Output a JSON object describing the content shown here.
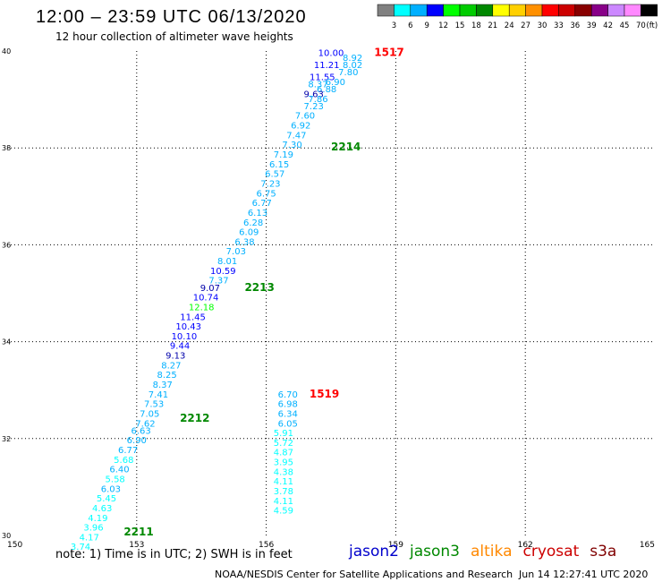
{
  "title": "12:00 – 23:59 UTC 06/13/2020",
  "subtitle": "12 hour collection of altimeter wave heights",
  "note": "note: 1) Time is in UTC; 2) SWH is in feet",
  "credit": "NOAA/NESDIS Center for Satellite Applications and Research",
  "timestamp": "Jun 14 12:27:41 UTC 2020",
  "missions": [
    {
      "name": "jason2",
      "color": "#0000cc"
    },
    {
      "name": "jason3",
      "color": "#008800"
    },
    {
      "name": "altika",
      "color": "#ff8800"
    },
    {
      "name": "cryosat",
      "color": "#cc0000"
    },
    {
      "name": "s3a",
      "color": "#800000"
    }
  ],
  "colorbar": {
    "unit": "(ft)",
    "colors": [
      "#808080",
      "#00ffff",
      "#00b0ff",
      "#0000ff",
      "#00ff00",
      "#00cc00",
      "#008800",
      "#ffff00",
      "#ffd000",
      "#ff9000",
      "#ff0000",
      "#cc0000",
      "#880000",
      "#880088",
      "#cc88ff",
      "#ff88ff",
      "#000000"
    ],
    "labels": [
      "3",
      "6",
      "9",
      "12",
      "15",
      "18",
      "21",
      "24",
      "27",
      "30",
      "33",
      "36",
      "39",
      "42",
      "45",
      "70"
    ]
  },
  "chart_data": {
    "type": "scatter",
    "title": "12:00 – 23:59 UTC 06/13/2020",
    "subtitle": "12 hour collection of altimeter wave heights",
    "xlim": [
      150,
      165
    ],
    "ylim": [
      30,
      40
    ],
    "x_ticks": [
      "150",
      "153",
      "156",
      "159",
      "162",
      "165"
    ],
    "y_ticks": [
      "30",
      "32",
      "34",
      "36",
      "38",
      "40"
    ],
    "grid": true,
    "value_unit": "ft",
    "time_labels": [
      {
        "text": "1517",
        "x": 158.5,
        "y": 39.9,
        "color": "#ff0000"
      },
      {
        "text": "2214",
        "x": 157.5,
        "y": 37.95,
        "color": "#008800"
      },
      {
        "text": "2213",
        "x": 155.5,
        "y": 35.05,
        "color": "#008800"
      },
      {
        "text": "1519",
        "x": 157.0,
        "y": 32.85,
        "color": "#ff0000"
      },
      {
        "text": "2212",
        "x": 154.0,
        "y": 32.35,
        "color": "#008800"
      },
      {
        "text": "2211",
        "x": 152.7,
        "y": 30.0,
        "color": "#008800"
      }
    ],
    "series": [
      {
        "name": "jason3",
        "points": [
          {
            "v": "10.00",
            "x": 157.5,
            "y": 39.9,
            "c": "#0000ff"
          },
          {
            "v": "8.92",
            "x": 158.0,
            "y": 39.8,
            "c": "#00b0ff"
          },
          {
            "v": "11.21",
            "x": 157.4,
            "y": 39.65,
            "c": "#0000ff"
          },
          {
            "v": "8.02",
            "x": 158.0,
            "y": 39.65,
            "c": "#00b0ff"
          },
          {
            "v": "7.80",
            "x": 157.9,
            "y": 39.5,
            "c": "#00b0ff"
          },
          {
            "v": "11.55",
            "x": 157.3,
            "y": 39.4,
            "c": "#0000ff"
          },
          {
            "v": "6.90",
            "x": 157.6,
            "y": 39.3,
            "c": "#00b0ff"
          },
          {
            "v": "8.37",
            "x": 157.2,
            "y": 39.25,
            "c": "#00b0ff"
          },
          {
            "v": "6.88",
            "x": 157.4,
            "y": 39.15,
            "c": "#00b0ff"
          },
          {
            "v": "9.63",
            "x": 157.1,
            "y": 39.05,
            "c": "#0000aa"
          },
          {
            "v": "7.86",
            "x": 157.2,
            "y": 38.95,
            "c": "#00b0ff"
          },
          {
            "v": "7.23",
            "x": 157.1,
            "y": 38.8,
            "c": "#00b0ff"
          },
          {
            "v": "7.60",
            "x": 156.9,
            "y": 38.6,
            "c": "#00b0ff"
          },
          {
            "v": "6.92",
            "x": 156.8,
            "y": 38.4,
            "c": "#00b0ff"
          },
          {
            "v": "7.47",
            "x": 156.7,
            "y": 38.2,
            "c": "#00b0ff"
          },
          {
            "v": "7.30",
            "x": 156.6,
            "y": 38.0,
            "c": "#00b0ff"
          },
          {
            "v": "7.19",
            "x": 156.4,
            "y": 37.8,
            "c": "#00b0ff"
          },
          {
            "v": "6.15",
            "x": 156.3,
            "y": 37.6,
            "c": "#00b0ff"
          },
          {
            "v": "6.57",
            "x": 156.2,
            "y": 37.4,
            "c": "#00b0ff"
          },
          {
            "v": "7.23",
            "x": 156.1,
            "y": 37.2,
            "c": "#00b0ff"
          },
          {
            "v": "6.75",
            "x": 156.0,
            "y": 37.0,
            "c": "#00b0ff"
          },
          {
            "v": "6.77",
            "x": 155.9,
            "y": 36.8,
            "c": "#00b0ff"
          },
          {
            "v": "6.13",
            "x": 155.8,
            "y": 36.6,
            "c": "#00b0ff"
          },
          {
            "v": "6.28",
            "x": 155.7,
            "y": 36.4,
            "c": "#00b0ff"
          },
          {
            "v": "6.09",
            "x": 155.6,
            "y": 36.2,
            "c": "#00b0ff"
          },
          {
            "v": "6.38",
            "x": 155.5,
            "y": 36.0,
            "c": "#00b0ff"
          },
          {
            "v": "7.03",
            "x": 155.3,
            "y": 35.8,
            "c": "#00b0ff"
          },
          {
            "v": "8.01",
            "x": 155.1,
            "y": 35.6,
            "c": "#00b0ff"
          },
          {
            "v": "10.59",
            "x": 155.0,
            "y": 35.4,
            "c": "#0000ff"
          },
          {
            "v": "7.37",
            "x": 154.9,
            "y": 35.2,
            "c": "#00b0ff"
          },
          {
            "v": "9.07",
            "x": 154.7,
            "y": 35.05,
            "c": "#0000aa"
          },
          {
            "v": "10.74",
            "x": 154.6,
            "y": 34.85,
            "c": "#0000ff"
          },
          {
            "v": "12.18",
            "x": 154.5,
            "y": 34.65,
            "c": "#00ff00"
          },
          {
            "v": "11.45",
            "x": 154.3,
            "y": 34.45,
            "c": "#0000ff"
          },
          {
            "v": "10.43",
            "x": 154.2,
            "y": 34.25,
            "c": "#0000ff"
          },
          {
            "v": "10.10",
            "x": 154.1,
            "y": 34.05,
            "c": "#0000ff"
          },
          {
            "v": "9.44",
            "x": 154.0,
            "y": 33.85,
            "c": "#0000ff"
          },
          {
            "v": "9.13",
            "x": 153.9,
            "y": 33.65,
            "c": "#0000aa"
          },
          {
            "v": "8.27",
            "x": 153.8,
            "y": 33.45,
            "c": "#00b0ff"
          },
          {
            "v": "8.25",
            "x": 153.7,
            "y": 33.25,
            "c": "#00b0ff"
          },
          {
            "v": "8.37",
            "x": 153.6,
            "y": 33.05,
            "c": "#00b0ff"
          },
          {
            "v": "7.41",
            "x": 153.5,
            "y": 32.85,
            "c": "#00b0ff"
          },
          {
            "v": "7.53",
            "x": 153.4,
            "y": 32.65,
            "c": "#00b0ff"
          },
          {
            "v": "7.05",
            "x": 153.3,
            "y": 32.45,
            "c": "#00b0ff"
          },
          {
            "v": "7.62",
            "x": 153.2,
            "y": 32.25,
            "c": "#00b0ff"
          },
          {
            "v": "6.63",
            "x": 153.1,
            "y": 32.1,
            "c": "#00b0ff"
          },
          {
            "v": "6.90",
            "x": 153.0,
            "y": 31.9,
            "c": "#00b0ff"
          },
          {
            "v": "6.77",
            "x": 152.8,
            "y": 31.7,
            "c": "#00b0ff"
          },
          {
            "v": "5.68",
            "x": 152.7,
            "y": 31.5,
            "c": "#00ffff"
          },
          {
            "v": "6.40",
            "x": 152.6,
            "y": 31.3,
            "c": "#00b0ff"
          },
          {
            "v": "5.58",
            "x": 152.5,
            "y": 31.1,
            "c": "#00ffff"
          },
          {
            "v": "6.03",
            "x": 152.4,
            "y": 30.9,
            "c": "#00b0ff"
          },
          {
            "v": "5.45",
            "x": 152.3,
            "y": 30.7,
            "c": "#00ffff"
          },
          {
            "v": "4.63",
            "x": 152.2,
            "y": 30.5,
            "c": "#00ffff"
          },
          {
            "v": "4.19",
            "x": 152.1,
            "y": 30.3,
            "c": "#00ffff"
          },
          {
            "v": "3.96",
            "x": 152.0,
            "y": 30.1,
            "c": "#00ffff"
          },
          {
            "v": "4.17",
            "x": 151.9,
            "y": 29.9,
            "c": "#00ffff"
          },
          {
            "v": "3.74",
            "x": 151.7,
            "y": 29.7,
            "c": "#00ffff"
          }
        ]
      },
      {
        "name": "cryosat",
        "points": [
          {
            "v": "6.70",
            "x": 156.5,
            "y": 32.85,
            "c": "#00b0ff"
          },
          {
            "v": "6.98",
            "x": 156.5,
            "y": 32.65,
            "c": "#00b0ff"
          },
          {
            "v": "6.34",
            "x": 156.5,
            "y": 32.45,
            "c": "#00b0ff"
          },
          {
            "v": "6.05",
            "x": 156.5,
            "y": 32.25,
            "c": "#00b0ff"
          },
          {
            "v": "5.91",
            "x": 156.4,
            "y": 32.05,
            "c": "#00ffff"
          },
          {
            "v": "5.72",
            "x": 156.4,
            "y": 31.85,
            "c": "#00ffff"
          },
          {
            "v": "4.87",
            "x": 156.4,
            "y": 31.65,
            "c": "#00ffff"
          },
          {
            "v": "3.95",
            "x": 156.4,
            "y": 31.45,
            "c": "#00ffff"
          },
          {
            "v": "4.38",
            "x": 156.4,
            "y": 31.25,
            "c": "#00ffff"
          },
          {
            "v": "4.11",
            "x": 156.4,
            "y": 31.05,
            "c": "#00ffff"
          },
          {
            "v": "3.78",
            "x": 156.4,
            "y": 30.85,
            "c": "#00ffff"
          },
          {
            "v": "4.11",
            "x": 156.4,
            "y": 30.65,
            "c": "#00ffff"
          },
          {
            "v": "4.59",
            "x": 156.4,
            "y": 30.45,
            "c": "#00ffff"
          }
        ]
      }
    ]
  }
}
